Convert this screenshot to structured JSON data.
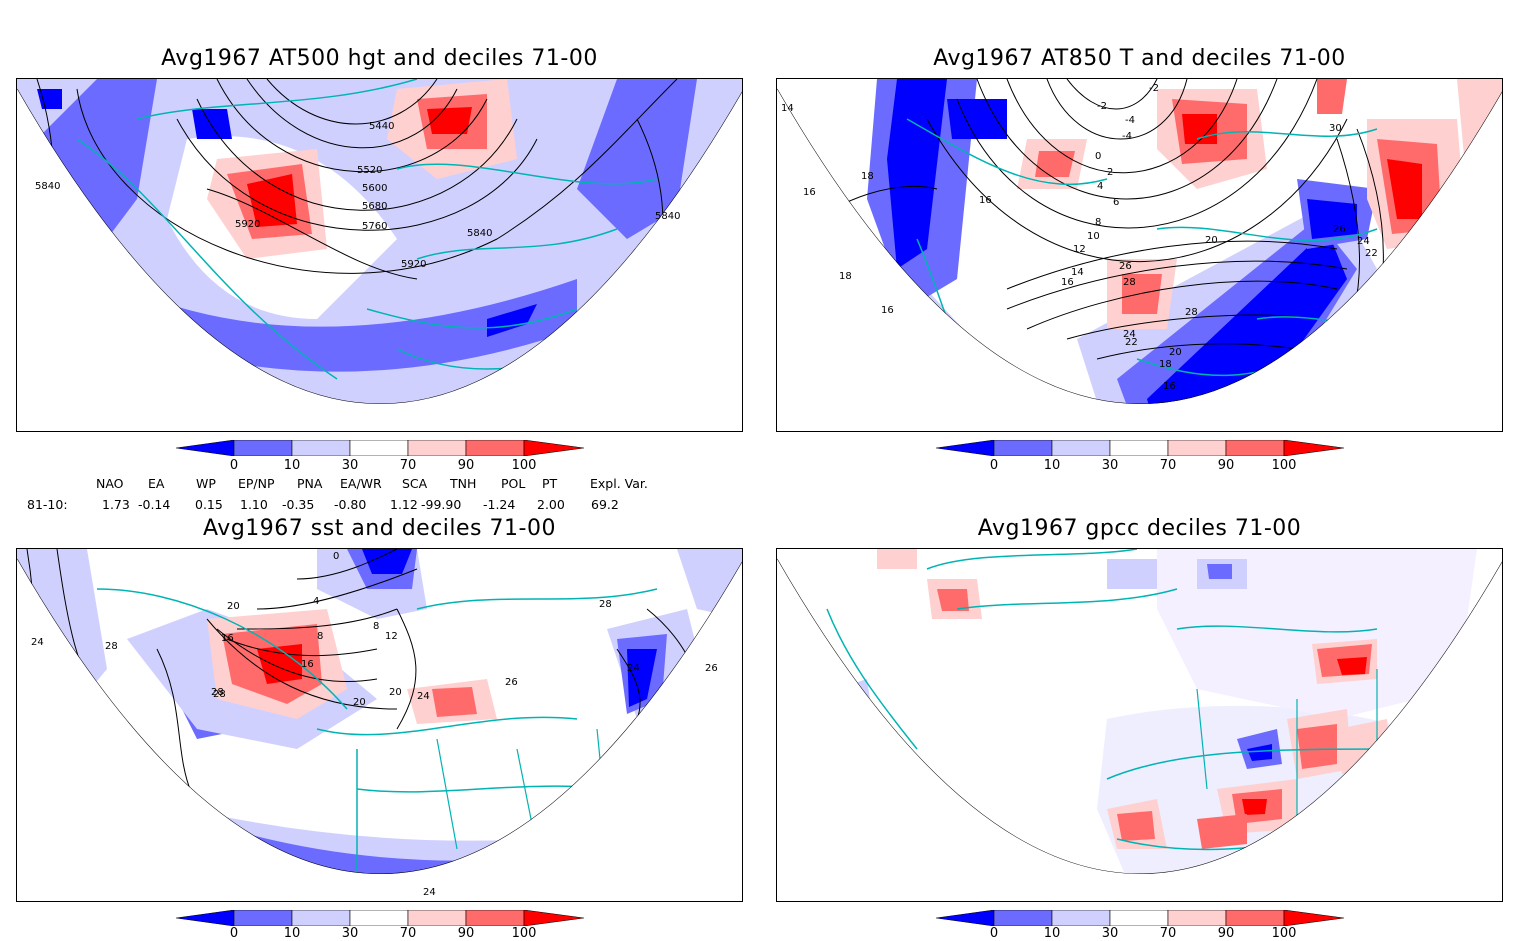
{
  "panels": [
    {
      "title": "Avg1967 AT500 hgt and deciles 71-00",
      "contour_labels": [
        "5440",
        "5520",
        "5600",
        "5680",
        "5760",
        "5840",
        "5920",
        "5920",
        "5840",
        "5840"
      ]
    },
    {
      "title": "Avg1967 AT850 T and deciles 71-00",
      "contour_labels": [
        "-2",
        "-4",
        "-4",
        "-2",
        "0",
        "2",
        "4",
        "6",
        "8",
        "10",
        "12",
        "14",
        "16",
        "16",
        "16",
        "16",
        "16",
        "18",
        "18",
        "18",
        "20",
        "20",
        "22",
        "22",
        "24",
        "24",
        "26",
        "26",
        "28",
        "28",
        "30",
        "14"
      ]
    },
    {
      "title": "Avg1967 sst and deciles 71-00",
      "contour_labels": [
        "24",
        "28",
        "28",
        "20",
        "16",
        "12",
        "8",
        "4",
        "0",
        "16",
        "20",
        "24",
        "26",
        "28",
        "24",
        "26",
        "24",
        "28",
        "20",
        "8"
      ]
    },
    {
      "title": "Avg1967 gpcc deciles 71-00",
      "contour_labels": []
    }
  ],
  "colorbar": {
    "labels": [
      "0",
      "10",
      "30",
      "70",
      "90",
      "100"
    ],
    "colors": [
      "#0000ff",
      "#6b6bff",
      "#d0d0ff",
      "#ffffff",
      "#ffd0d0",
      "#ff6b6b",
      "#ff0000"
    ]
  },
  "indices": {
    "headers": [
      "NAO",
      "EA",
      "WP",
      "EP/NP",
      "PNA",
      "EA/WR",
      "SCA",
      "TNH",
      "POL",
      "PT",
      "Expl. Var."
    ],
    "row_label": "81-10:",
    "values": [
      "1.73",
      "-0.14",
      "0.15",
      "1.10",
      "-0.35",
      "-0.80",
      "1.12",
      "-99.90",
      "-1.24",
      "2.00",
      "69.2"
    ]
  },
  "colors": {
    "coast": "#00b4b4",
    "blue_strong": "#0000ff",
    "blue_mid": "#6b6bff",
    "blue_light": "#d0d0ff",
    "red_light": "#ffd0d0",
    "red_mid": "#ff6b6b",
    "red_strong": "#ff0000"
  }
}
